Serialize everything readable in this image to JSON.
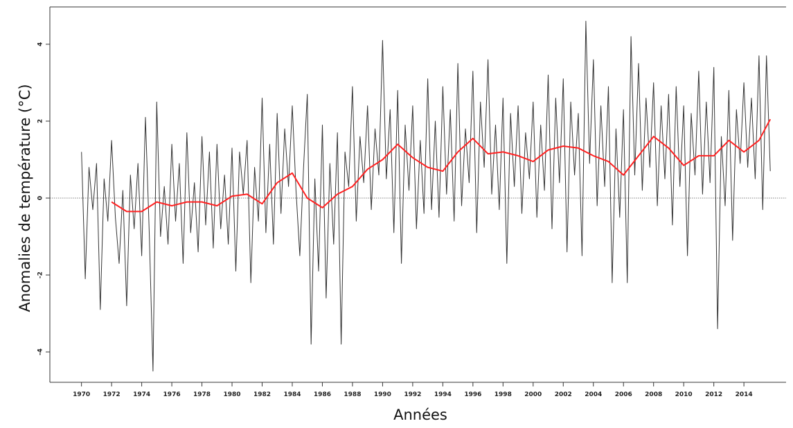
{
  "chart_data": {
    "type": "line",
    "xlabel": "Années",
    "ylabel": "Anomalies de température (°C)",
    "xlim": [
      1967.9,
      2016.8
    ],
    "ylim": [
      -4.79,
      4.97
    ],
    "xticks": [
      1970,
      1972,
      1974,
      1976,
      1978,
      1980,
      1982,
      1984,
      1986,
      1988,
      1990,
      1992,
      1994,
      1996,
      1998,
      2000,
      2002,
      2004,
      2006,
      2008,
      2010,
      2012,
      2014
    ],
    "yticks": [
      -4,
      -2,
      0,
      2,
      4
    ],
    "reference_line": 0,
    "series": [
      {
        "color": "#333333",
        "x": [
          1970,
          1970.25,
          1970.5,
          1970.75,
          1971,
          1971.25,
          1971.5,
          1971.75,
          1972,
          1972.25,
          1972.5,
          1972.75,
          1973,
          1973.25,
          1973.5,
          1973.75,
          1974,
          1974.25,
          1974.5,
          1974.75,
          1975,
          1975.25,
          1975.5,
          1975.75,
          1976,
          1976.25,
          1976.5,
          1976.75,
          1977,
          1977.25,
          1977.5,
          1977.75,
          1978,
          1978.25,
          1978.5,
          1978.75,
          1979,
          1979.25,
          1979.5,
          1979.75,
          1980,
          1980.25,
          1980.5,
          1980.75,
          1981,
          1981.25,
          1981.5,
          1981.75,
          1982,
          1982.25,
          1982.5,
          1982.75,
          1983,
          1983.25,
          1983.5,
          1983.75,
          1984,
          1984.25,
          1984.5,
          1984.75,
          1985,
          1985.25,
          1985.5,
          1985.75,
          1986,
          1986.25,
          1986.5,
          1986.75,
          1987,
          1987.25,
          1987.5,
          1987.75,
          1988,
          1988.25,
          1988.5,
          1988.75,
          1989,
          1989.25,
          1989.5,
          1989.75,
          1990,
          1990.25,
          1990.5,
          1990.75,
          1991,
          1991.25,
          1991.5,
          1991.75,
          1992,
          1992.25,
          1992.5,
          1992.75,
          1993,
          1993.25,
          1993.5,
          1993.75,
          1994,
          1994.25,
          1994.5,
          1994.75,
          1995,
          1995.25,
          1995.5,
          1995.75,
          1996,
          1996.25,
          1996.5,
          1996.75,
          1997,
          1997.25,
          1997.5,
          1997.75,
          1998,
          1998.25,
          1998.5,
          1998.75,
          1999,
          1999.25,
          1999.5,
          1999.75,
          2000,
          2000.25,
          2000.5,
          2000.75,
          2001,
          2001.25,
          2001.5,
          2001.75,
          2002,
          2002.25,
          2002.5,
          2002.75,
          2003,
          2003.25,
          2003.5,
          2003.75,
          2004,
          2004.25,
          2004.5,
          2004.75,
          2005,
          2005.25,
          2005.5,
          2005.75,
          2006,
          2006.25,
          2006.5,
          2006.75,
          2007,
          2007.25,
          2007.5,
          2007.75,
          2008,
          2008.25,
          2008.5,
          2008.75,
          2009,
          2009.25,
          2009.5,
          2009.75,
          2010,
          2010.25,
          2010.5,
          2010.75,
          2011,
          2011.25,
          2011.5,
          2011.75,
          2012,
          2012.25,
          2012.5,
          2012.75,
          2013,
          2013.25,
          2013.5,
          2013.75,
          2014,
          2014.25,
          2014.5,
          2014.75,
          2015,
          2015.25,
          2015.5,
          2015.75
        ],
        "values": [
          1.2,
          -2.1,
          0.8,
          -0.3,
          0.9,
          -2.9,
          0.5,
          -0.6,
          1.5,
          -0.5,
          -1.7,
          0.2,
          -2.8,
          0.6,
          -0.8,
          0.9,
          -1.5,
          2.1,
          -0.9,
          -4.5,
          2.5,
          -1.0,
          0.3,
          -1.2,
          1.4,
          -0.6,
          0.9,
          -1.7,
          1.7,
          -0.9,
          0.4,
          -1.4,
          1.6,
          -0.7,
          1.2,
          -1.3,
          1.4,
          -0.8,
          0.6,
          -1.2,
          1.3,
          -1.9,
          1.2,
          0.1,
          1.5,
          -2.2,
          0.8,
          -0.6,
          2.6,
          -0.9,
          1.4,
          -1.2,
          2.2,
          -0.4,
          1.8,
          0.3,
          2.4,
          0.2,
          -1.5,
          0.8,
          2.7,
          -3.8,
          0.5,
          -1.9,
          1.9,
          -2.6,
          0.9,
          -1.2,
          1.7,
          -3.8,
          1.2,
          0.3,
          2.9,
          -0.6,
          1.6,
          0.4,
          2.4,
          -0.3,
          1.8,
          0.6,
          4.1,
          0.5,
          2.3,
          -0.9,
          2.8,
          -1.7,
          1.9,
          0.2,
          2.4,
          -0.8,
          1.5,
          -0.4,
          3.1,
          -0.3,
          2.0,
          -0.5,
          2.9,
          0.1,
          2.3,
          -0.6,
          3.5,
          -0.2,
          1.8,
          0.4,
          3.3,
          -0.9,
          2.5,
          0.8,
          3.6,
          0.1,
          1.9,
          -0.3,
          2.6,
          -1.7,
          2.2,
          0.3,
          2.4,
          -0.4,
          1.7,
          0.5,
          2.5,
          -0.5,
          1.9,
          0.2,
          3.2,
          -0.8,
          2.6,
          0.4,
          3.1,
          -1.4,
          2.5,
          0.6,
          2.2,
          -1.5,
          4.6,
          0.9,
          3.6,
          -0.2,
          2.4,
          0.3,
          2.9,
          -2.2,
          1.8,
          -0.5,
          2.3,
          -2.2,
          4.2,
          0.6,
          3.5,
          0.2,
          2.6,
          0.8,
          3.0,
          -0.2,
          2.4,
          0.5,
          2.7,
          -0.7,
          2.9,
          0.3,
          2.4,
          -1.5,
          2.2,
          0.6,
          3.3,
          0.1,
          2.5,
          0.4,
          3.4,
          -3.4,
          1.6,
          -0.2,
          2.8,
          -1.1,
          2.3,
          0.9,
          3.0,
          0.8,
          2.6,
          0.5,
          3.7,
          -0.3,
          3.7,
          0.7
        ]
      },
      {
        "color": "#ff2020",
        "x": [
          1972,
          1973,
          1974,
          1975,
          1976,
          1977,
          1978,
          1979,
          1980,
          1981,
          1982,
          1983,
          1984,
          1985,
          1986,
          1987,
          1988,
          1989,
          1990,
          1991,
          1992,
          1993,
          1994,
          1995,
          1996,
          1997,
          1998,
          1999,
          2000,
          2001,
          2002,
          2003,
          2004,
          2005,
          2006,
          2007,
          2008,
          2009,
          2010,
          2011,
          2012,
          2013,
          2014,
          2015,
          2015.75
        ],
        "values": [
          -0.1,
          -0.35,
          -0.35,
          -0.1,
          -0.2,
          -0.1,
          -0.1,
          -0.2,
          0.05,
          0.1,
          -0.15,
          0.4,
          0.65,
          0.0,
          -0.25,
          0.1,
          0.3,
          0.75,
          1.0,
          1.4,
          1.05,
          0.8,
          0.7,
          1.2,
          1.55,
          1.15,
          1.2,
          1.1,
          0.95,
          1.25,
          1.35,
          1.3,
          1.1,
          0.95,
          0.6,
          1.1,
          1.6,
          1.3,
          0.85,
          1.1,
          1.1,
          1.5,
          1.2,
          1.5,
          2.05
        ]
      }
    ]
  }
}
